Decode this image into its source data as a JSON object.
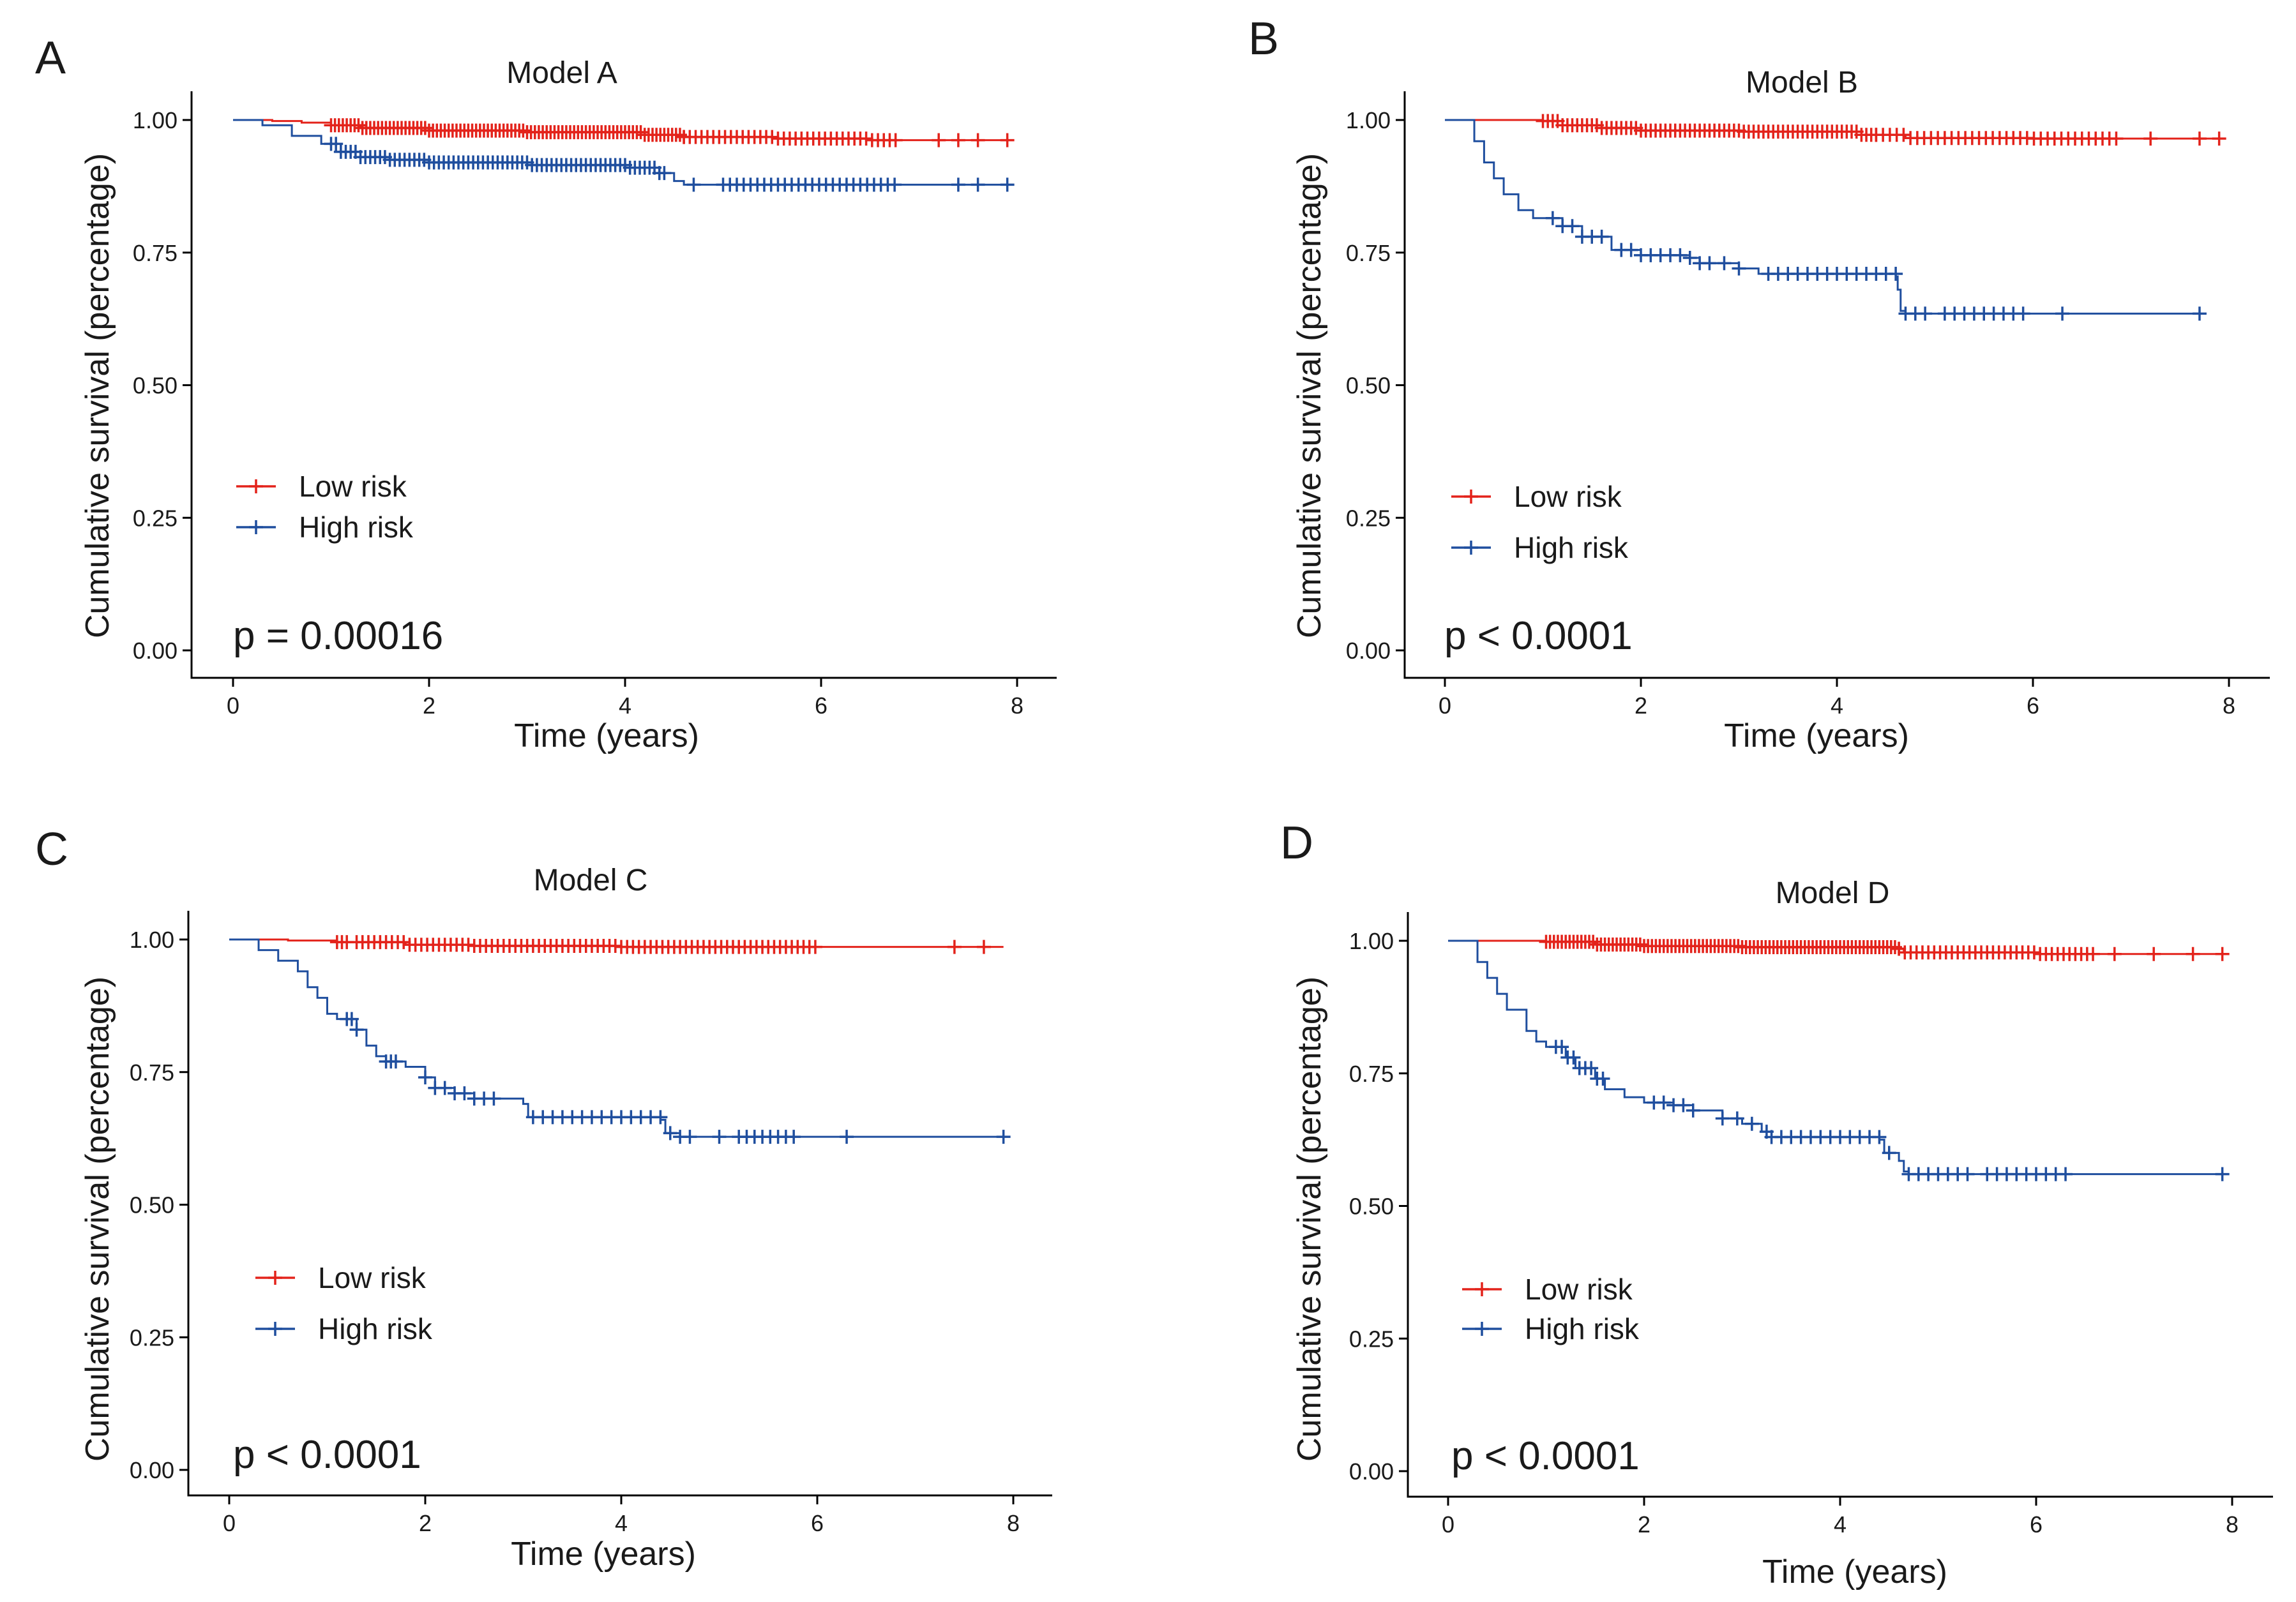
{
  "colors": {
    "low_risk": "#E3231B",
    "high_risk": "#1F4E9E",
    "axis": "#000000"
  },
  "chart_data": [
    {
      "type": "line",
      "panel": "A",
      "title": "Model A",
      "xlabel": "Time (years)",
      "ylabel": "Cumulative survival (percentage)",
      "xlim": [
        0,
        8
      ],
      "ylim": [
        0,
        1
      ],
      "x_ticks": [
        "0",
        "2",
        "4",
        "6",
        "8"
      ],
      "y_ticks": [
        "0.00",
        "0.25",
        "0.50",
        "0.75",
        "1.00"
      ],
      "legend": [
        "Low risk",
        "High risk"
      ],
      "p_value": "p = 0.00016",
      "series": [
        {
          "name": "Low risk",
          "color_key": "low_risk",
          "steps": [
            [
              0,
              1.0
            ],
            [
              0.4,
              0.998
            ],
            [
              0.7,
              0.995
            ],
            [
              1.0,
              0.99
            ],
            [
              1.3,
              0.985
            ],
            [
              2.0,
              0.98
            ],
            [
              3.0,
              0.977
            ],
            [
              4.2,
              0.972
            ],
            [
              4.6,
              0.968
            ],
            [
              5.5,
              0.965
            ],
            [
              6.5,
              0.962
            ],
            [
              7.9,
              0.962
            ]
          ],
          "censor_ranges": [
            [
              1.0,
              4.6,
              0.04
            ],
            [
              4.6,
              6.8,
              0.06
            ]
          ],
          "censor_points": [
            7.2,
            7.4,
            7.6,
            7.9
          ]
        },
        {
          "name": "High risk",
          "color_key": "high_risk",
          "steps": [
            [
              0,
              1.0
            ],
            [
              0.3,
              0.99
            ],
            [
              0.6,
              0.97
            ],
            [
              0.9,
              0.955
            ],
            [
              1.1,
              0.94
            ],
            [
              1.3,
              0.93
            ],
            [
              1.6,
              0.925
            ],
            [
              2.0,
              0.92
            ],
            [
              3.0,
              0.915
            ],
            [
              4.0,
              0.91
            ],
            [
              4.3,
              0.9
            ],
            [
              4.5,
              0.885
            ],
            [
              4.6,
              0.878
            ],
            [
              7.9,
              0.878
            ]
          ],
          "censor_ranges": [
            [
              1.0,
              4.4,
              0.05
            ],
            [
              5.0,
              6.8,
              0.07
            ]
          ],
          "censor_points": [
            4.7,
            7.4,
            7.6,
            7.9
          ]
        }
      ]
    },
    {
      "type": "line",
      "panel": "B",
      "title": "Model B",
      "xlabel": "Time (years)",
      "ylabel": "Cumulative survival (percentage)",
      "xlim": [
        0,
        8
      ],
      "ylim": [
        0,
        1
      ],
      "x_ticks": [
        "0",
        "2",
        "4",
        "6",
        "8"
      ],
      "y_ticks": [
        "0.00",
        "0.25",
        "0.50",
        "0.75",
        "1.00"
      ],
      "legend": [
        "Low risk",
        "High risk"
      ],
      "p_value": "p < 0.0001",
      "series": [
        {
          "name": "Low risk",
          "color_key": "low_risk",
          "steps": [
            [
              0,
              1.0
            ],
            [
              1.0,
              0.998
            ],
            [
              1.2,
              0.99
            ],
            [
              1.6,
              0.985
            ],
            [
              2.0,
              0.98
            ],
            [
              3.0,
              0.978
            ],
            [
              4.2,
              0.972
            ],
            [
              4.7,
              0.966
            ],
            [
              6.0,
              0.965
            ],
            [
              7.9,
              0.965
            ]
          ],
          "censor_ranges": [
            [
              1.0,
              4.4,
              0.05
            ],
            [
              4.4,
              6.9,
              0.07
            ]
          ],
          "censor_points": [
            7.2,
            7.7,
            7.9
          ]
        },
        {
          "name": "High risk",
          "color_key": "high_risk",
          "steps": [
            [
              0,
              1.0
            ],
            [
              0.3,
              0.96
            ],
            [
              0.4,
              0.92
            ],
            [
              0.5,
              0.89
            ],
            [
              0.6,
              0.86
            ],
            [
              0.75,
              0.83
            ],
            [
              0.9,
              0.815
            ],
            [
              1.2,
              0.8
            ],
            [
              1.4,
              0.78
            ],
            [
              1.7,
              0.755
            ],
            [
              2.0,
              0.745
            ],
            [
              2.5,
              0.74
            ],
            [
              2.6,
              0.73
            ],
            [
              3.0,
              0.72
            ],
            [
              3.2,
              0.71
            ],
            [
              4.6,
              0.705
            ],
            [
              4.62,
              0.68
            ],
            [
              4.65,
              0.64
            ],
            [
              4.7,
              0.635
            ],
            [
              7.7,
              0.635
            ]
          ],
          "censor_ranges": [
            [
              1.1,
              1.6,
              0.1
            ],
            [
              1.8,
              2.6,
              0.1
            ],
            [
              2.7,
              3.1,
              0.15
            ],
            [
              3.3,
              4.6,
              0.1
            ],
            [
              4.7,
              4.9,
              0.1
            ],
            [
              5.1,
              5.9,
              0.1
            ]
          ],
          "censor_points": [
            6.3,
            7.7
          ]
        }
      ]
    },
    {
      "type": "line",
      "panel": "C",
      "title": "Model C",
      "xlabel": "Time (years)",
      "ylabel": "Cumulative survival (percentage)",
      "xlim": [
        0,
        8
      ],
      "ylim": [
        0,
        1
      ],
      "x_ticks": [
        "0",
        "2",
        "4",
        "6",
        "8"
      ],
      "y_ticks": [
        "0.00",
        "0.25",
        "0.50",
        "0.75",
        "1.00"
      ],
      "legend": [
        "Low risk",
        "High risk"
      ],
      "p_value": "p < 0.0001",
      "series": [
        {
          "name": "Low risk",
          "color_key": "low_risk",
          "steps": [
            [
              0,
              1.0
            ],
            [
              0.6,
              0.998
            ],
            [
              1.1,
              0.995
            ],
            [
              1.8,
              0.99
            ],
            [
              2.5,
              0.988
            ],
            [
              4.0,
              0.986
            ],
            [
              7.9,
              0.986
            ]
          ],
          "censor_ranges": [
            [
              1.1,
              1.2,
              0.05
            ],
            [
              1.3,
              6.0,
              0.06
            ]
          ],
          "censor_points": [
            7.4,
            7.7
          ]
        },
        {
          "name": "High risk",
          "color_key": "high_risk",
          "steps": [
            [
              0,
              1.0
            ],
            [
              0.3,
              0.98
            ],
            [
              0.5,
              0.96
            ],
            [
              0.7,
              0.94
            ],
            [
              0.8,
              0.91
            ],
            [
              0.9,
              0.89
            ],
            [
              1.0,
              0.86
            ],
            [
              1.1,
              0.85
            ],
            [
              1.3,
              0.83
            ],
            [
              1.4,
              0.8
            ],
            [
              1.5,
              0.78
            ],
            [
              1.6,
              0.77
            ],
            [
              1.8,
              0.76
            ],
            [
              2.0,
              0.74
            ],
            [
              2.1,
              0.72
            ],
            [
              2.3,
              0.71
            ],
            [
              2.5,
              0.7
            ],
            [
              3.0,
              0.69
            ],
            [
              3.05,
              0.665
            ],
            [
              4.4,
              0.66
            ],
            [
              4.45,
              0.635
            ],
            [
              4.6,
              0.628
            ],
            [
              7.9,
              0.628
            ]
          ],
          "censor_ranges": [
            [
              1.2,
              1.3,
              0.05
            ],
            [
              1.6,
              1.7,
              0.05
            ],
            [
              2.0,
              2.7,
              0.1
            ],
            [
              3.1,
              3.6,
              0.1
            ],
            [
              3.7,
              4.4,
              0.1
            ],
            [
              4.5,
              4.7,
              0.1
            ],
            [
              5.2,
              5.8,
              0.08
            ]
          ],
          "censor_points": [
            5.0,
            6.3,
            7.9
          ]
        }
      ]
    },
    {
      "type": "line",
      "panel": "D",
      "title": "Model D",
      "xlabel": "Time (years)",
      "ylabel": "Cumulative survival (percentage)",
      "xlim": [
        0,
        8
      ],
      "ylim": [
        0,
        1
      ],
      "x_ticks": [
        "0",
        "2",
        "4",
        "6",
        "8"
      ],
      "y_ticks": [
        "0.00",
        "0.25",
        "0.50",
        "0.75",
        "1.00"
      ],
      "legend": [
        "Low risk",
        "High risk"
      ],
      "p_value": "p < 0.0001",
      "series": [
        {
          "name": "Low risk",
          "color_key": "low_risk",
          "steps": [
            [
              0,
              1.0
            ],
            [
              1.0,
              0.998
            ],
            [
              1.5,
              0.993
            ],
            [
              2.0,
              0.99
            ],
            [
              3.0,
              0.988
            ],
            [
              4.6,
              0.985
            ],
            [
              4.65,
              0.978
            ],
            [
              6.0,
              0.975
            ],
            [
              7.9,
              0.975
            ]
          ],
          "censor_ranges": [
            [
              1.0,
              4.6,
              0.04
            ],
            [
              4.6,
              6.6,
              0.06
            ]
          ],
          "censor_points": [
            6.8,
            7.2,
            7.6,
            7.9
          ]
        },
        {
          "name": "High risk",
          "color_key": "high_risk",
          "steps": [
            [
              0,
              1.0
            ],
            [
              0.3,
              0.96
            ],
            [
              0.4,
              0.93
            ],
            [
              0.5,
              0.9
            ],
            [
              0.6,
              0.87
            ],
            [
              0.8,
              0.83
            ],
            [
              0.9,
              0.81
            ],
            [
              1.0,
              0.8
            ],
            [
              1.2,
              0.78
            ],
            [
              1.3,
              0.76
            ],
            [
              1.5,
              0.74
            ],
            [
              1.6,
              0.72
            ],
            [
              1.8,
              0.705
            ],
            [
              2.0,
              0.695
            ],
            [
              2.3,
              0.69
            ],
            [
              2.5,
              0.68
            ],
            [
              2.8,
              0.665
            ],
            [
              3.0,
              0.655
            ],
            [
              3.2,
              0.64
            ],
            [
              3.3,
              0.63
            ],
            [
              4.4,
              0.625
            ],
            [
              4.45,
              0.6
            ],
            [
              4.6,
              0.585
            ],
            [
              4.65,
              0.565
            ],
            [
              4.7,
              0.56
            ],
            [
              7.9,
              0.56
            ]
          ],
          "censor_ranges": [
            [
              1.1,
              1.6,
              0.06
            ],
            [
              2.1,
              2.5,
              0.1
            ],
            [
              2.8,
              3.3,
              0.15
            ],
            [
              3.3,
              3.6,
              0.1
            ],
            [
              3.7,
              4.5,
              0.1
            ],
            [
              4.7,
              5.3,
              0.1
            ],
            [
              5.5,
              6.2,
              0.1
            ]
          ],
          "censor_points": [
            6.3,
            7.9
          ]
        }
      ]
    }
  ]
}
